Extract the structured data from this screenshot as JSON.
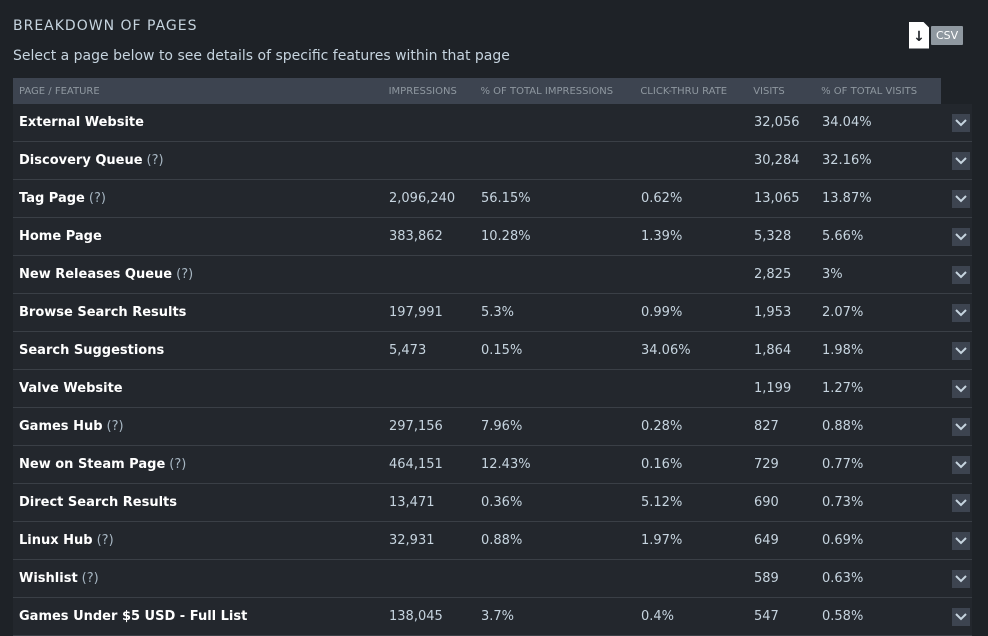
{
  "header": {
    "title": "BREAKDOWN OF PAGES",
    "subtitle": "Select a page below to see details of specific features within that page",
    "csv_label": "CSV"
  },
  "columns": [
    "PAGE / FEATURE",
    "IMPRESSIONS",
    "% OF TOTAL IMPRESSIONS",
    "CLICK-THRU RATE",
    "VISITS",
    "% OF TOTAL VISITS"
  ],
  "help_label": "(?)",
  "rows": [
    {
      "name": "External Website",
      "help": false,
      "impressions": "",
      "pct_impressions": "",
      "ctr": "",
      "visits": "32,056",
      "pct_visits": "34.04%"
    },
    {
      "name": "Discovery Queue",
      "help": true,
      "impressions": "",
      "pct_impressions": "",
      "ctr": "",
      "visits": "30,284",
      "pct_visits": "32.16%"
    },
    {
      "name": "Tag Page",
      "help": true,
      "impressions": "2,096,240",
      "pct_impressions": "56.15%",
      "ctr": "0.62%",
      "visits": "13,065",
      "pct_visits": "13.87%"
    },
    {
      "name": "Home Page",
      "help": false,
      "impressions": "383,862",
      "pct_impressions": "10.28%",
      "ctr": "1.39%",
      "visits": "5,328",
      "pct_visits": "5.66%"
    },
    {
      "name": "New Releases Queue",
      "help": true,
      "impressions": "",
      "pct_impressions": "",
      "ctr": "",
      "visits": "2,825",
      "pct_visits": "3%"
    },
    {
      "name": "Browse Search Results",
      "help": false,
      "impressions": "197,991",
      "pct_impressions": "5.3%",
      "ctr": "0.99%",
      "visits": "1,953",
      "pct_visits": "2.07%"
    },
    {
      "name": "Search Suggestions",
      "help": false,
      "impressions": "5,473",
      "pct_impressions": "0.15%",
      "ctr": "34.06%",
      "visits": "1,864",
      "pct_visits": "1.98%"
    },
    {
      "name": "Valve Website",
      "help": false,
      "impressions": "",
      "pct_impressions": "",
      "ctr": "",
      "visits": "1,199",
      "pct_visits": "1.27%"
    },
    {
      "name": "Games Hub",
      "help": true,
      "impressions": "297,156",
      "pct_impressions": "7.96%",
      "ctr": "0.28%",
      "visits": "827",
      "pct_visits": "0.88%"
    },
    {
      "name": "New on Steam Page",
      "help": true,
      "impressions": "464,151",
      "pct_impressions": "12.43%",
      "ctr": "0.16%",
      "visits": "729",
      "pct_visits": "0.77%"
    },
    {
      "name": "Direct Search Results",
      "help": false,
      "impressions": "13,471",
      "pct_impressions": "0.36%",
      "ctr": "5.12%",
      "visits": "690",
      "pct_visits": "0.73%"
    },
    {
      "name": "Linux Hub",
      "help": true,
      "impressions": "32,931",
      "pct_impressions": "0.88%",
      "ctr": "1.97%",
      "visits": "649",
      "pct_visits": "0.69%"
    },
    {
      "name": "Wishlist",
      "help": true,
      "impressions": "",
      "pct_impressions": "",
      "ctr": "",
      "visits": "589",
      "pct_visits": "0.63%"
    },
    {
      "name": "Games Under $5 USD - Full List",
      "help": false,
      "impressions": "138,045",
      "pct_impressions": "3.7%",
      "ctr": "0.4%",
      "visits": "547",
      "pct_visits": "0.58%"
    }
  ],
  "icons": {
    "download": "download-arrow-icon",
    "expand": "chevron-down-icon"
  },
  "colors": {
    "background": "#1e2227",
    "header_bar": "#3d4450",
    "accent_text": "#c6d4df"
  }
}
